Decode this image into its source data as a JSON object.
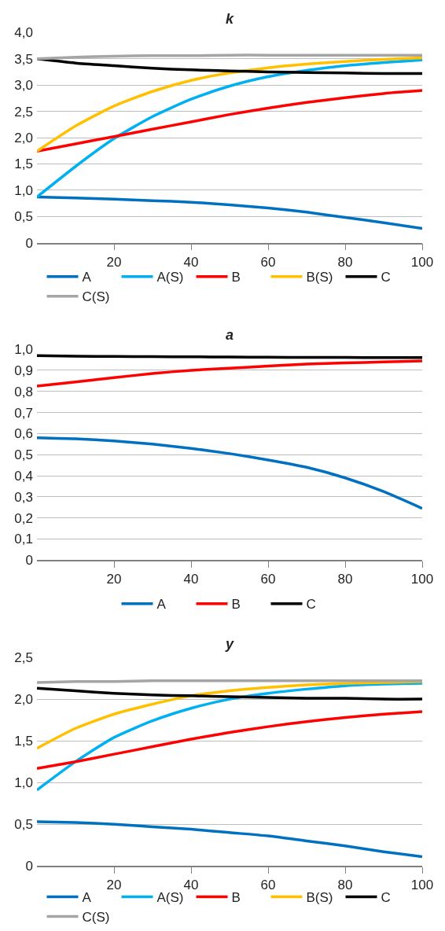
{
  "chart_data": [
    {
      "type": "line",
      "title": "k",
      "x": [
        0,
        10,
        20,
        30,
        40,
        50,
        60,
        70,
        80,
        90,
        100
      ],
      "xlim": [
        0,
        100
      ],
      "xticks": [
        20,
        40,
        60,
        80,
        100
      ],
      "ylim": [
        0,
        4
      ],
      "yticks": [
        0,
        {
          "value": 0.5,
          "label": "0,5"
        },
        {
          "value": 1,
          "label": "1,0"
        },
        {
          "value": 1.5,
          "label": "1,5"
        },
        {
          "value": 2,
          "label": "2,0"
        },
        {
          "value": 2.5,
          "label": "2,5"
        },
        {
          "value": 3,
          "label": "3,0"
        },
        {
          "value": 3.5,
          "label": "3,5"
        },
        {
          "value": 4,
          "label": "4,0"
        }
      ],
      "grid": "y",
      "legend": "bottom",
      "series": [
        {
          "name": "A",
          "color": "#0070c0",
          "values": [
            0.87,
            0.85,
            0.83,
            0.8,
            0.77,
            0.72,
            0.66,
            0.58,
            0.48,
            0.38,
            0.27
          ]
        },
        {
          "name": "A(S)",
          "color": "#00b0f0",
          "values": [
            0.87,
            1.45,
            1.98,
            2.4,
            2.73,
            2.98,
            3.16,
            3.28,
            3.37,
            3.43,
            3.48
          ]
        },
        {
          "name": "B",
          "color": "#ff0000",
          "values": [
            1.74,
            1.88,
            2.02,
            2.16,
            2.3,
            2.44,
            2.56,
            2.67,
            2.76,
            2.84,
            2.9
          ]
        },
        {
          "name": "B(S)",
          "color": "#ffc000",
          "values": [
            1.74,
            2.22,
            2.6,
            2.88,
            3.09,
            3.23,
            3.33,
            3.4,
            3.45,
            3.49,
            3.52
          ]
        },
        {
          "name": "C",
          "color": "#000000",
          "values": [
            3.5,
            3.42,
            3.37,
            3.32,
            3.29,
            3.27,
            3.25,
            3.24,
            3.23,
            3.22,
            3.22
          ]
        },
        {
          "name": "C(S)",
          "color": "#a5a5a5",
          "values": [
            3.5,
            3.53,
            3.55,
            3.56,
            3.56,
            3.57,
            3.57,
            3.57,
            3.57,
            3.57,
            3.57
          ]
        }
      ]
    },
    {
      "type": "line",
      "title": "a",
      "x": [
        0,
        10,
        20,
        30,
        40,
        50,
        60,
        70,
        80,
        90,
        100
      ],
      "xlim": [
        0,
        100
      ],
      "xticks": [
        20,
        40,
        60,
        80,
        100
      ],
      "ylim": [
        0,
        1
      ],
      "yticks": [
        0,
        {
          "value": 0.1,
          "label": "0,1"
        },
        {
          "value": 0.2,
          "label": "0,2"
        },
        {
          "value": 0.3,
          "label": "0,3"
        },
        {
          "value": 0.4,
          "label": "0,4"
        },
        {
          "value": 0.5,
          "label": "0,5"
        },
        {
          "value": 0.6,
          "label": "0,6"
        },
        {
          "value": 0.7,
          "label": "0,7"
        },
        {
          "value": 0.8,
          "label": "0,8"
        },
        {
          "value": 0.9,
          "label": "0,9"
        },
        {
          "value": 1,
          "label": "1,0"
        }
      ],
      "grid": "y",
      "legend": "bottom",
      "series": [
        {
          "name": "A",
          "color": "#0070c0",
          "values": [
            0.58,
            0.575,
            0.565,
            0.55,
            0.53,
            0.505,
            0.475,
            0.44,
            0.39,
            0.325,
            0.245
          ]
        },
        {
          "name": "B",
          "color": "#ff0000",
          "values": [
            0.825,
            0.845,
            0.865,
            0.885,
            0.9,
            0.91,
            0.92,
            0.93,
            0.935,
            0.94,
            0.945
          ]
        },
        {
          "name": "C",
          "color": "#000000",
          "values": [
            0.97,
            0.967,
            0.966,
            0.965,
            0.964,
            0.963,
            0.962,
            0.961,
            0.961,
            0.96,
            0.96
          ]
        }
      ]
    },
    {
      "type": "line",
      "title": "y",
      "x": [
        0,
        10,
        20,
        30,
        40,
        50,
        60,
        70,
        80,
        90,
        100
      ],
      "xlim": [
        0,
        100
      ],
      "xticks": [
        20,
        40,
        60,
        80,
        100
      ],
      "ylim": [
        0,
        2.5
      ],
      "yticks": [
        0,
        {
          "value": 0.5,
          "label": "0,5"
        },
        {
          "value": 1,
          "label": "1,0"
        },
        {
          "value": 1.5,
          "label": "1,5"
        },
        {
          "value": 2,
          "label": "2,0"
        },
        {
          "value": 2.5,
          "label": "2,5"
        }
      ],
      "grid": "y",
      "legend": "bottom",
      "series": [
        {
          "name": "A",
          "color": "#0070c0",
          "values": [
            0.53,
            0.52,
            0.5,
            0.47,
            0.44,
            0.4,
            0.36,
            0.3,
            0.24,
            0.17,
            0.11
          ]
        },
        {
          "name": "A(S)",
          "color": "#00b0f0",
          "values": [
            0.91,
            1.25,
            1.54,
            1.74,
            1.89,
            2.0,
            2.07,
            2.12,
            2.16,
            2.18,
            2.19
          ]
        },
        {
          "name": "B",
          "color": "#ff0000",
          "values": [
            1.17,
            1.25,
            1.34,
            1.43,
            1.52,
            1.6,
            1.67,
            1.73,
            1.78,
            1.82,
            1.85
          ]
        },
        {
          "name": "B(S)",
          "color": "#ffc000",
          "values": [
            1.41,
            1.65,
            1.82,
            1.94,
            2.04,
            2.1,
            2.14,
            2.17,
            2.19,
            2.2,
            2.21
          ]
        },
        {
          "name": "C",
          "color": "#000000",
          "values": [
            2.13,
            2.1,
            2.07,
            2.05,
            2.04,
            2.03,
            2.02,
            2.01,
            2.01,
            2.0,
            2.0
          ]
        },
        {
          "name": "C(S)",
          "color": "#a5a5a5",
          "values": [
            2.2,
            2.21,
            2.21,
            2.22,
            2.22,
            2.22,
            2.22,
            2.22,
            2.22,
            2.22,
            2.22
          ]
        }
      ]
    }
  ]
}
